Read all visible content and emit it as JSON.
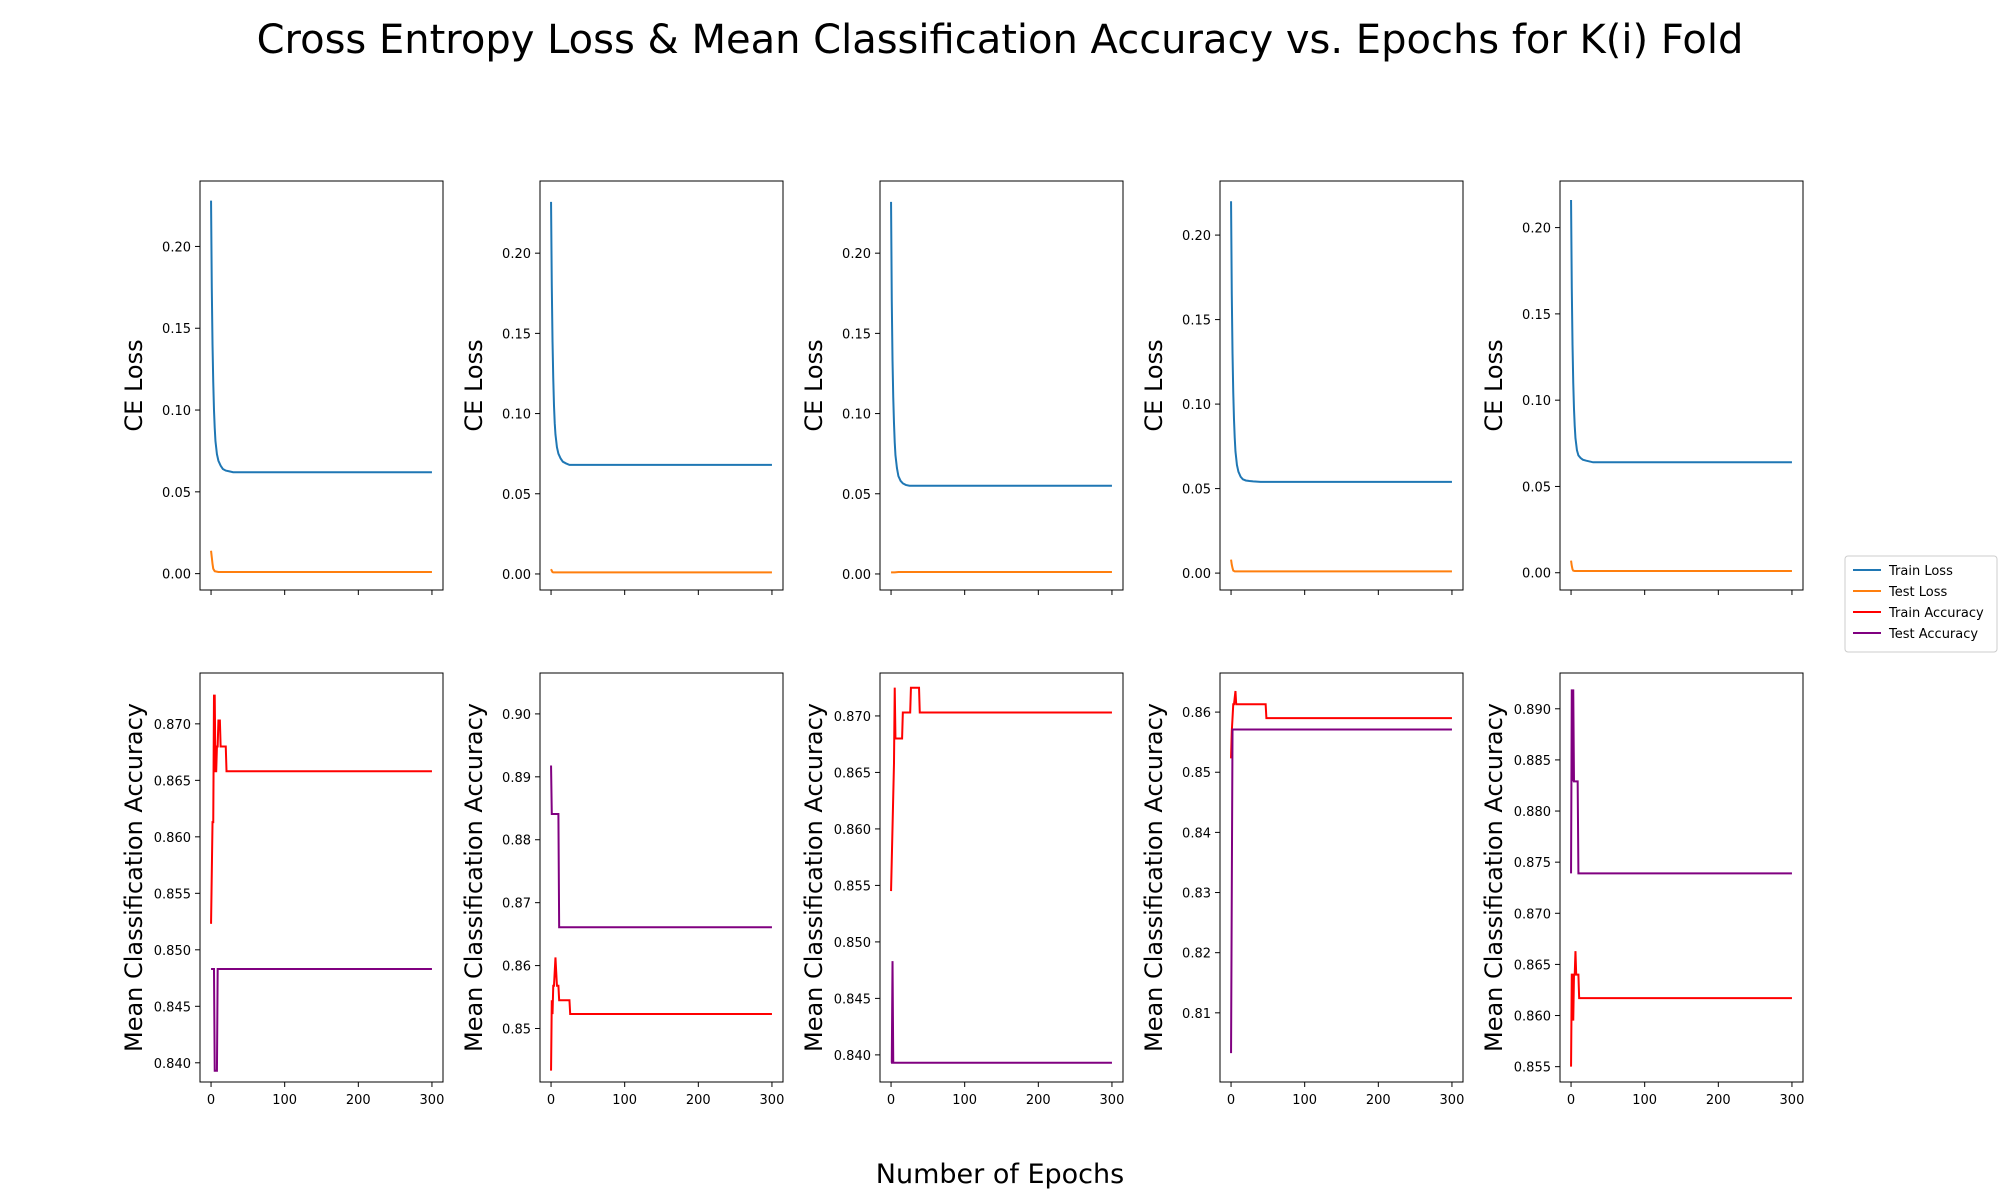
{
  "figure": {
    "title": "Cross Entropy Loss & Mean Classification Accuracy vs. Epochs for K(i) Fold",
    "xlabel": "Number of Epochs"
  },
  "legend": {
    "placement": "right-center",
    "entries": [
      {
        "name": "Train Loss",
        "color": "#1f77b4"
      },
      {
        "name": "Test Loss",
        "color": "#ff7f0e"
      },
      {
        "name": "Train Accuracy",
        "color": "#ff0000"
      },
      {
        "name": "Test Accuracy",
        "color": "#800080"
      }
    ]
  },
  "chart_data": [
    {
      "type": "line",
      "fold": 1,
      "row": "loss",
      "ylabel": "CE Loss",
      "xlim": [
        -15,
        315
      ],
      "ylim": [
        -0.01,
        0.24
      ],
      "xticks": [
        0,
        100,
        200,
        300
      ],
      "xtick_labels": [
        "",
        "",
        "",
        ""
      ],
      "yticks": [
        0.0,
        0.05,
        0.1,
        0.15,
        0.2
      ],
      "ytick_labels": [
        "0.00",
        "0.05",
        "0.10",
        "0.15",
        "0.20"
      ],
      "series": [
        {
          "name": "Train Loss",
          "color": "#1f77b4",
          "x": [
            0,
            1,
            2,
            3,
            4,
            5,
            6,
            8,
            10,
            13,
            16,
            20,
            25,
            30,
            40,
            60,
            100,
            150,
            200,
            250,
            300
          ],
          "y": [
            0.228,
            0.175,
            0.14,
            0.117,
            0.1,
            0.089,
            0.081,
            0.073,
            0.069,
            0.066,
            0.064,
            0.063,
            0.0625,
            0.062,
            0.062,
            0.062,
            0.062,
            0.062,
            0.062,
            0.062,
            0.062
          ]
        },
        {
          "name": "Test Loss",
          "color": "#ff7f0e",
          "x": [
            0,
            1,
            2,
            3,
            5,
            10,
            50,
            100,
            200,
            300
          ],
          "y": [
            0.014,
            0.01,
            0.006,
            0.003,
            0.0015,
            0.001,
            0.001,
            0.001,
            0.001,
            0.001
          ]
        }
      ]
    },
    {
      "type": "line",
      "fold": 2,
      "row": "loss",
      "ylabel": "CE Loss",
      "xlim": [
        -15,
        315
      ],
      "ylim": [
        -0.01,
        0.245
      ],
      "xticks": [
        0,
        100,
        200,
        300
      ],
      "xtick_labels": [
        "",
        "",
        "",
        ""
      ],
      "yticks": [
        0.0,
        0.05,
        0.1,
        0.15,
        0.2
      ],
      "ytick_labels": [
        "0.00",
        "0.05",
        "0.10",
        "0.15",
        "0.20"
      ],
      "series": [
        {
          "name": "Train Loss",
          "color": "#1f77b4",
          "x": [
            0,
            1,
            2,
            3,
            4,
            5,
            6,
            8,
            10,
            13,
            16,
            20,
            25,
            30,
            40,
            60,
            100,
            150,
            200,
            250,
            300
          ],
          "y": [
            0.232,
            0.18,
            0.145,
            0.122,
            0.105,
            0.094,
            0.087,
            0.079,
            0.075,
            0.072,
            0.07,
            0.069,
            0.068,
            0.068,
            0.068,
            0.068,
            0.068,
            0.068,
            0.068,
            0.068,
            0.068
          ]
        },
        {
          "name": "Test Loss",
          "color": "#ff7f0e",
          "x": [
            0,
            1,
            2,
            3,
            5,
            10,
            50,
            100,
            200,
            300
          ],
          "y": [
            0.003,
            0.002,
            0.0012,
            0.001,
            0.001,
            0.001,
            0.001,
            0.001,
            0.001,
            0.001
          ]
        }
      ]
    },
    {
      "type": "line",
      "fold": 3,
      "row": "loss",
      "ylabel": "CE Loss",
      "xlim": [
        -15,
        315
      ],
      "ylim": [
        -0.01,
        0.245
      ],
      "xticks": [
        0,
        100,
        200,
        300
      ],
      "xtick_labels": [
        "",
        "",
        "",
        ""
      ],
      "yticks": [
        0.0,
        0.05,
        0.1,
        0.15,
        0.2
      ],
      "ytick_labels": [
        "0.00",
        "0.05",
        "0.10",
        "0.15",
        "0.20"
      ],
      "series": [
        {
          "name": "Train Loss",
          "color": "#1f77b4",
          "x": [
            0,
            1,
            2,
            3,
            4,
            5,
            6,
            8,
            10,
            13,
            16,
            20,
            25,
            30,
            40,
            60,
            100,
            150,
            200,
            250,
            300
          ],
          "y": [
            0.232,
            0.17,
            0.133,
            0.11,
            0.094,
            0.082,
            0.074,
            0.066,
            0.061,
            0.058,
            0.0565,
            0.0555,
            0.055,
            0.055,
            0.055,
            0.055,
            0.055,
            0.055,
            0.055,
            0.055,
            0.055
          ]
        },
        {
          "name": "Test Loss",
          "color": "#ff7f0e",
          "x": [
            0,
            1,
            2,
            5,
            10,
            50,
            100,
            200,
            300
          ],
          "y": [
            0.001,
            0.001,
            0.001,
            0.001,
            0.0012,
            0.0012,
            0.0012,
            0.0012,
            0.0012
          ]
        }
      ]
    },
    {
      "type": "line",
      "fold": 4,
      "row": "loss",
      "ylabel": "CE Loss",
      "xlim": [
        -15,
        315
      ],
      "ylim": [
        -0.01,
        0.232
      ],
      "xticks": [
        0,
        100,
        200,
        300
      ],
      "xtick_labels": [
        "",
        "",
        "",
        ""
      ],
      "yticks": [
        0.0,
        0.05,
        0.1,
        0.15,
        0.2
      ],
      "ytick_labels": [
        "0.00",
        "0.05",
        "0.10",
        "0.15",
        "0.20"
      ],
      "series": [
        {
          "name": "Train Loss",
          "color": "#1f77b4",
          "x": [
            0,
            1,
            2,
            3,
            4,
            5,
            6,
            8,
            10,
            13,
            16,
            20,
            25,
            30,
            40,
            60,
            100,
            150,
            200,
            250,
            300
          ],
          "y": [
            0.22,
            0.165,
            0.13,
            0.107,
            0.091,
            0.08,
            0.072,
            0.064,
            0.06,
            0.057,
            0.0555,
            0.0548,
            0.0545,
            0.0543,
            0.054,
            0.054,
            0.054,
            0.054,
            0.054,
            0.054,
            0.054
          ]
        },
        {
          "name": "Test Loss",
          "color": "#ff7f0e",
          "x": [
            0,
            1,
            2,
            3,
            5,
            10,
            50,
            100,
            200,
            300
          ],
          "y": [
            0.008,
            0.005,
            0.003,
            0.0015,
            0.001,
            0.001,
            0.001,
            0.001,
            0.001,
            0.001
          ]
        }
      ]
    },
    {
      "type": "line",
      "fold": 5,
      "row": "loss",
      "ylabel": "CE Loss",
      "xlim": [
        -15,
        315
      ],
      "ylim": [
        -0.01,
        0.227
      ],
      "xticks": [
        0,
        100,
        200,
        300
      ],
      "xtick_labels": [
        "",
        "",
        "",
        ""
      ],
      "yticks": [
        0.0,
        0.05,
        0.1,
        0.15,
        0.2
      ],
      "ytick_labels": [
        "0.00",
        "0.05",
        "0.10",
        "0.15",
        "0.20"
      ],
      "series": [
        {
          "name": "Train Loss",
          "color": "#1f77b4",
          "x": [
            0,
            1,
            2,
            3,
            4,
            5,
            6,
            8,
            10,
            13,
            16,
            20,
            25,
            30,
            40,
            60,
            100,
            150,
            200,
            250,
            300
          ],
          "y": [
            0.216,
            0.165,
            0.132,
            0.11,
            0.095,
            0.085,
            0.078,
            0.071,
            0.068,
            0.0665,
            0.0655,
            0.065,
            0.0645,
            0.064,
            0.064,
            0.064,
            0.064,
            0.064,
            0.064,
            0.064,
            0.064
          ]
        },
        {
          "name": "Test Loss",
          "color": "#ff7f0e",
          "x": [
            0,
            1,
            2,
            3,
            5,
            10,
            50,
            100,
            200,
            300
          ],
          "y": [
            0.007,
            0.004,
            0.002,
            0.0012,
            0.001,
            0.001,
            0.001,
            0.001,
            0.001,
            0.001
          ]
        }
      ]
    },
    {
      "type": "line",
      "fold": 1,
      "row": "accuracy",
      "ylabel": "Mean Classification Accuracy",
      "xlim": [
        -15,
        315
      ],
      "ylim": [
        0.8383,
        0.8745
      ],
      "xticks": [
        0,
        100,
        200,
        300
      ],
      "xtick_labels": [
        "0",
        "100",
        "200",
        "300"
      ],
      "yticks": [
        0.84,
        0.845,
        0.85,
        0.855,
        0.86,
        0.865,
        0.87
      ],
      "ytick_labels": [
        "0.840",
        "0.845",
        "0.850",
        "0.855",
        "0.860",
        "0.865",
        "0.870"
      ],
      "series": [
        {
          "name": "Train Accuracy",
          "color": "#ff0000",
          "x": [
            0,
            2,
            3,
            4,
            5,
            6,
            7,
            8,
            9,
            10,
            12,
            13,
            14,
            15,
            17,
            18,
            19,
            20,
            21,
            22,
            300
          ],
          "y": [
            0.8523,
            0.8613,
            0.8613,
            0.8725,
            0.8725,
            0.8658,
            0.8658,
            0.868,
            0.868,
            0.8703,
            0.8703,
            0.868,
            0.868,
            0.868,
            0.868,
            0.868,
            0.868,
            0.868,
            0.8658,
            0.8658,
            0.8658
          ]
        },
        {
          "name": "Test Accuracy",
          "color": "#800080",
          "x": [
            0,
            4,
            5,
            8,
            9,
            300
          ],
          "y": [
            0.8483,
            0.8483,
            0.8393,
            0.8393,
            0.8483,
            0.8483
          ]
        }
      ]
    },
    {
      "type": "line",
      "fold": 2,
      "row": "accuracy",
      "ylabel": "Mean Classification Accuracy",
      "xlim": [
        -15,
        315
      ],
      "ylim": [
        0.8415,
        0.9065
      ],
      "xticks": [
        0,
        100,
        200,
        300
      ],
      "xtick_labels": [
        "0",
        "100",
        "200",
        "300"
      ],
      "yticks": [
        0.85,
        0.86,
        0.87,
        0.88,
        0.89,
        0.9
      ],
      "ytick_labels": [
        "0.85",
        "0.86",
        "0.87",
        "0.88",
        "0.89",
        "0.90"
      ],
      "series": [
        {
          "name": "Train Accuracy",
          "color": "#ff0000",
          "x": [
            0,
            1,
            2,
            3,
            4,
            6,
            7,
            8,
            10,
            11,
            12,
            14,
            15,
            25,
            26,
            300
          ],
          "y": [
            0.8433,
            0.8545,
            0.8523,
            0.8568,
            0.8568,
            0.8613,
            0.859,
            0.8568,
            0.8568,
            0.8545,
            0.8545,
            0.8545,
            0.8545,
            0.8545,
            0.8523,
            0.8523
          ]
        },
        {
          "name": "Test Accuracy",
          "color": "#800080",
          "x": [
            0,
            1,
            2,
            10,
            11,
            300
          ],
          "y": [
            0.8918,
            0.8841,
            0.8841,
            0.8841,
            0.8661,
            0.8661
          ]
        }
      ]
    },
    {
      "type": "line",
      "fold": 3,
      "row": "accuracy",
      "ylabel": "Mean Classification Accuracy",
      "xlim": [
        -15,
        315
      ],
      "ylim": [
        0.8376,
        0.8738
      ],
      "xticks": [
        0,
        100,
        200,
        300
      ],
      "xtick_labels": [
        "0",
        "100",
        "200",
        "300"
      ],
      "yticks": [
        0.84,
        0.845,
        0.85,
        0.855,
        0.86,
        0.865,
        0.87
      ],
      "ytick_labels": [
        "0.840",
        "0.845",
        "0.850",
        "0.855",
        "0.860",
        "0.865",
        "0.870"
      ],
      "series": [
        {
          "name": "Train Accuracy",
          "color": "#ff0000",
          "x": [
            0,
            4,
            5,
            6,
            8,
            9,
            10,
            15,
            16,
            20,
            21,
            26,
            27,
            38,
            39,
            300
          ],
          "y": [
            0.8545,
            0.8658,
            0.8725,
            0.868,
            0.868,
            0.868,
            0.868,
            0.868,
            0.8703,
            0.8703,
            0.8703,
            0.8703,
            0.8725,
            0.8725,
            0.8703,
            0.8703
          ]
        },
        {
          "name": "Test Accuracy",
          "color": "#800080",
          "x": [
            0,
            1,
            2,
            3,
            4,
            5,
            300
          ],
          "y": [
            0.8393,
            0.8393,
            0.8483,
            0.8393,
            0.8393,
            0.8393,
            0.8393
          ]
        }
      ]
    },
    {
      "type": "line",
      "fold": 4,
      "row": "accuracy",
      "ylabel": "Mean Classification Accuracy",
      "xlim": [
        -15,
        315
      ],
      "ylim": [
        0.7985,
        0.8665
      ],
      "xticks": [
        0,
        100,
        200,
        300
      ],
      "xtick_labels": [
        "0",
        "100",
        "200",
        "300"
      ],
      "yticks": [
        0.81,
        0.82,
        0.83,
        0.84,
        0.85,
        0.86
      ],
      "ytick_labels": [
        "0.81",
        "0.82",
        "0.83",
        "0.84",
        "0.85",
        "0.86"
      ],
      "series": [
        {
          "name": "Train Accuracy",
          "color": "#ff0000",
          "x": [
            0,
            1,
            2,
            3,
            4,
            6,
            7,
            8,
            10,
            11,
            47,
            48,
            300
          ],
          "y": [
            0.8523,
            0.8568,
            0.859,
            0.8613,
            0.8613,
            0.8635,
            0.8613,
            0.8613,
            0.8613,
            0.8613,
            0.8613,
            0.859,
            0.859
          ]
        },
        {
          "name": "Test Accuracy",
          "color": "#800080",
          "x": [
            0,
            2,
            300
          ],
          "y": [
            0.8033,
            0.8571,
            0.8571
          ]
        }
      ]
    },
    {
      "type": "line",
      "fold": 5,
      "row": "accuracy",
      "ylabel": "Mean Classification Accuracy",
      "xlim": [
        -15,
        315
      ],
      "ylim": [
        0.8535,
        0.8935
      ],
      "xticks": [
        0,
        100,
        200,
        300
      ],
      "xtick_labels": [
        "0",
        "100",
        "200",
        "300"
      ],
      "yticks": [
        0.855,
        0.86,
        0.865,
        0.87,
        0.875,
        0.88,
        0.885,
        0.89
      ],
      "ytick_labels": [
        "0.855",
        "0.860",
        "0.865",
        "0.870",
        "0.875",
        "0.880",
        "0.885",
        "0.890"
      ],
      "series": [
        {
          "name": "Train Accuracy",
          "color": "#ff0000",
          "x": [
            0,
            1,
            2,
            3,
            4,
            5,
            6,
            7,
            8,
            9,
            10,
            11,
            12,
            300
          ],
          "y": [
            0.855,
            0.864,
            0.864,
            0.8595,
            0.864,
            0.864,
            0.8663,
            0.864,
            0.864,
            0.864,
            0.864,
            0.8617,
            0.8617,
            0.8617
          ]
        },
        {
          "name": "Test Accuracy",
          "color": "#800080",
          "x": [
            0,
            1,
            2,
            3,
            4,
            5,
            6,
            7,
            8,
            9,
            10,
            300
          ],
          "y": [
            0.8739,
            0.8919,
            0.8829,
            0.8919,
            0.8829,
            0.8829,
            0.8829,
            0.8829,
            0.8829,
            0.8829,
            0.8739,
            0.8739
          ]
        }
      ]
    }
  ]
}
